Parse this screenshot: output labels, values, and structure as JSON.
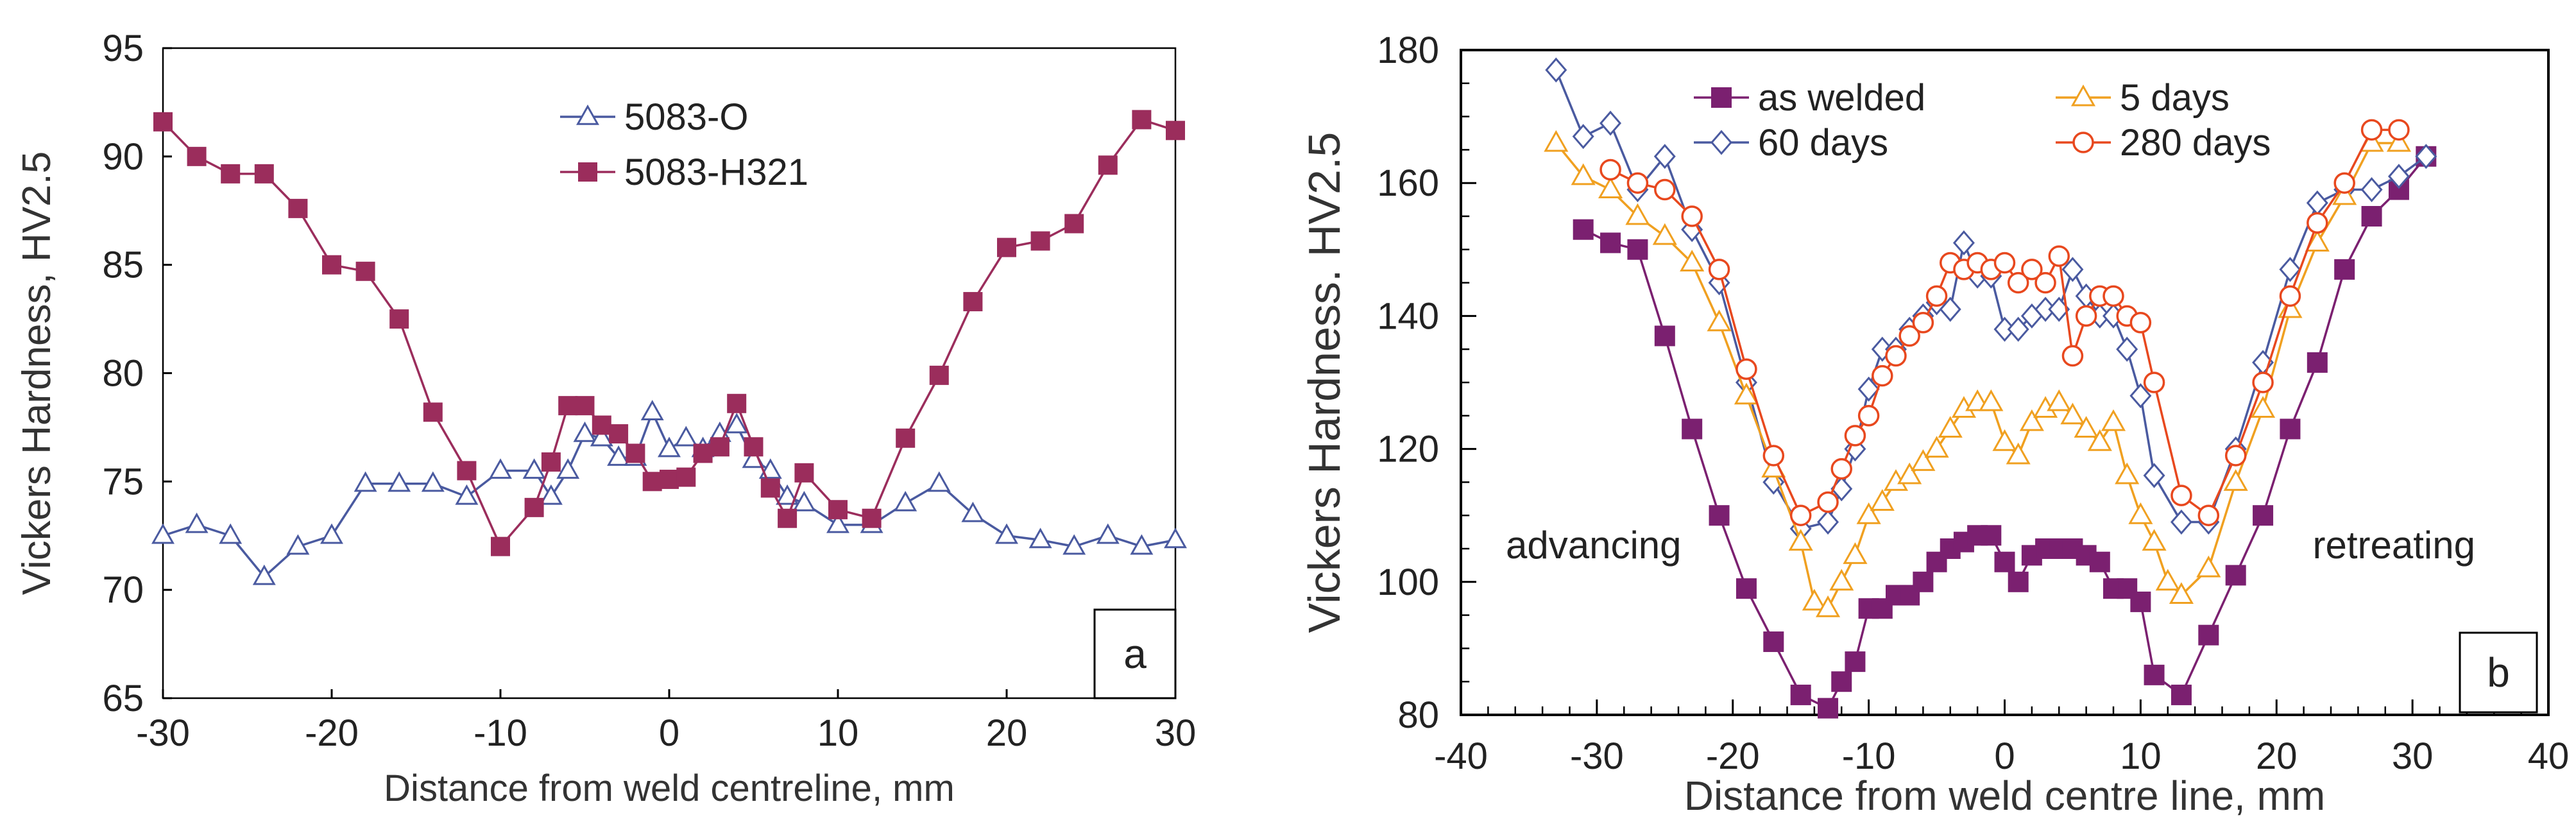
{
  "chart_data": [
    {
      "type": "line",
      "panel_label": "a",
      "title": "",
      "xlabel": "Distance from weld centreline, mm",
      "ylabel": "Vickers Hardness, HV2.5",
      "xlim": [
        -30,
        30
      ],
      "ylim": [
        65,
        95
      ],
      "xticks": [
        -30,
        -20,
        -10,
        0,
        10,
        20,
        30
      ],
      "yticks": [
        65,
        70,
        75,
        80,
        85,
        90,
        95
      ],
      "grid": false,
      "legend_position": "top-center",
      "series": [
        {
          "name": "5083-O",
          "color": "#4a5aa0",
          "marker": "triangle-open",
          "x": [
            -30,
            -28,
            -26,
            -24,
            -22,
            -20,
            -18,
            -16,
            -14,
            -12,
            -10,
            -8,
            -7,
            -6,
            -5,
            -4,
            -3,
            -2,
            -1,
            0,
            1,
            2,
            3,
            4,
            5,
            6,
            7,
            8,
            10,
            12,
            14,
            16,
            18,
            20,
            22,
            24,
            26,
            28,
            30
          ],
          "y": [
            72.5,
            73.0,
            72.5,
            70.6,
            72.0,
            72.5,
            74.9,
            74.9,
            74.9,
            74.3,
            75.5,
            75.5,
            74.3,
            75.5,
            77.2,
            77.0,
            76.1,
            76.1,
            78.2,
            76.5,
            77.0,
            76.5,
            77.2,
            77.6,
            76.0,
            75.5,
            74.3,
            74.0,
            73.0,
            73.0,
            74.0,
            74.9,
            73.5,
            72.5,
            72.3,
            72.0,
            72.5,
            72.0,
            72.3
          ]
        },
        {
          "name": "5083-H321",
          "color": "#9b2d5c",
          "marker": "square-filled",
          "x": [
            -30,
            -28,
            -26,
            -24,
            -22,
            -20,
            -18,
            -16,
            -14,
            -12,
            -10,
            -8,
            -7,
            -6,
            -5,
            -4,
            -3,
            -2,
            -1,
            0,
            1,
            2,
            3,
            4,
            5,
            6,
            7,
            8,
            10,
            12,
            14,
            16,
            18,
            20,
            22,
            24,
            26,
            28,
            30
          ],
          "y": [
            91.6,
            90.0,
            89.2,
            89.2,
            87.6,
            85.0,
            84.7,
            82.5,
            78.2,
            75.5,
            72.0,
            73.8,
            75.9,
            78.5,
            78.5,
            77.6,
            77.2,
            76.3,
            75.0,
            75.1,
            75.2,
            76.3,
            76.6,
            78.6,
            76.6,
            74.7,
            73.3,
            75.4,
            73.7,
            73.3,
            77.0,
            79.9,
            83.3,
            85.8,
            86.1,
            86.9,
            89.6,
            91.7,
            91.2
          ]
        }
      ]
    },
    {
      "type": "line",
      "panel_label": "b",
      "title": "",
      "xlabel": "Distance from weld centre line, mm",
      "ylabel": "Vickers Hardness. HV2.5",
      "xlim": [
        -40,
        40
      ],
      "ylim": [
        80,
        180
      ],
      "xticks": [
        -40,
        -30,
        -20,
        -10,
        0,
        10,
        20,
        30,
        40
      ],
      "yticks": [
        80,
        100,
        120,
        140,
        160,
        180
      ],
      "grid": false,
      "legend_position": "top-center",
      "annotations": [
        "advancing",
        "retreating"
      ],
      "series": [
        {
          "name": "as welded",
          "color": "#7b2070",
          "marker": "square-filled",
          "x": [
            -31,
            -29,
            -27,
            -25,
            -23,
            -21,
            -19,
            -17,
            -15,
            -13,
            -12,
            -11,
            -10,
            -9,
            -8,
            -7,
            -6,
            -5,
            -4,
            -3,
            -2,
            -1,
            0,
            1,
            2,
            3,
            4,
            5,
            6,
            7,
            8,
            9,
            10,
            11,
            13,
            15,
            17,
            19,
            21,
            23,
            25,
            27,
            29,
            31
          ],
          "y": [
            153,
            151,
            150,
            137,
            123,
            110,
            99,
            91,
            83,
            81,
            85,
            88,
            96,
            96,
            98,
            98,
            100,
            103,
            105,
            106,
            107,
            107,
            103,
            100,
            104,
            105,
            105,
            105,
            104,
            103,
            99,
            99,
            97,
            86,
            83,
            92,
            101,
            110,
            123,
            133,
            147,
            155,
            159,
            164
          ]
        },
        {
          "name": "60 days",
          "color": "#4a5aa0",
          "marker": "diamond-open",
          "x": [
            -33,
            -31,
            -29,
            -27,
            -25,
            -23,
            -21,
            -19,
            -17,
            -15,
            -13,
            -12,
            -11,
            -10,
            -9,
            -8,
            -7,
            -6,
            -5,
            -4,
            -3,
            -2,
            -1,
            0,
            1,
            2,
            3,
            4,
            5,
            6,
            7,
            8,
            9,
            10,
            11,
            13,
            15,
            17,
            19,
            21,
            23,
            25,
            27,
            29,
            31
          ],
          "y": [
            177,
            167,
            169,
            159,
            164,
            153,
            145,
            130,
            115,
            108,
            109,
            114,
            120,
            129,
            135,
            135,
            138,
            140,
            142,
            141,
            151,
            146,
            146,
            138,
            138,
            140,
            141,
            141,
            147,
            143,
            140,
            140,
            135,
            128,
            116,
            109,
            109,
            120,
            133,
            147,
            157,
            159,
            159,
            161,
            164
          ]
        },
        {
          "name": "5 days",
          "color": "#f0a020",
          "marker": "triangle-open",
          "x": [
            -33,
            -31,
            -29,
            -27,
            -25,
            -23,
            -21,
            -19,
            -17,
            -15,
            -14,
            -13,
            -12,
            -11,
            -10,
            -9,
            -8,
            -7,
            -6,
            -5,
            -4,
            -3,
            -2,
            -1,
            0,
            1,
            2,
            3,
            4,
            5,
            6,
            7,
            8,
            9,
            10,
            11,
            12,
            13,
            15,
            17,
            19,
            21,
            23,
            25,
            27,
            29
          ],
          "y": [
            166,
            161,
            159,
            155,
            152,
            148,
            139,
            128,
            117,
            106,
            97,
            96,
            100,
            104,
            110,
            112,
            115,
            116,
            118,
            120,
            123,
            126,
            127,
            127,
            121,
            119,
            124,
            126,
            127,
            125,
            123,
            121,
            124,
            116,
            110,
            106,
            100,
            98,
            102,
            115,
            126,
            141,
            151,
            158,
            166,
            166
          ]
        },
        {
          "name": "280 days",
          "color": "#e8481e",
          "marker": "circle-open",
          "x": [
            -29,
            -27,
            -25,
            -23,
            -21,
            -19,
            -17,
            -15,
            -13,
            -12,
            -11,
            -10,
            -9,
            -8,
            -7,
            -6,
            -5,
            -4,
            -3,
            -2,
            -1,
            0,
            1,
            2,
            3,
            4,
            5,
            6,
            7,
            8,
            9,
            10,
            11,
            13,
            15,
            17,
            19,
            21,
            23,
            25,
            27,
            29
          ],
          "y": [
            162,
            160,
            159,
            155,
            147,
            132,
            119,
            110,
            112,
            117,
            122,
            125,
            131,
            134,
            137,
            139,
            143,
            148,
            147,
            148,
            147,
            148,
            145,
            147,
            145,
            149,
            134,
            140,
            143,
            143,
            140,
            139,
            130,
            113,
            110,
            119,
            130,
            143,
            154,
            160,
            168,
            168
          ]
        }
      ]
    }
  ]
}
